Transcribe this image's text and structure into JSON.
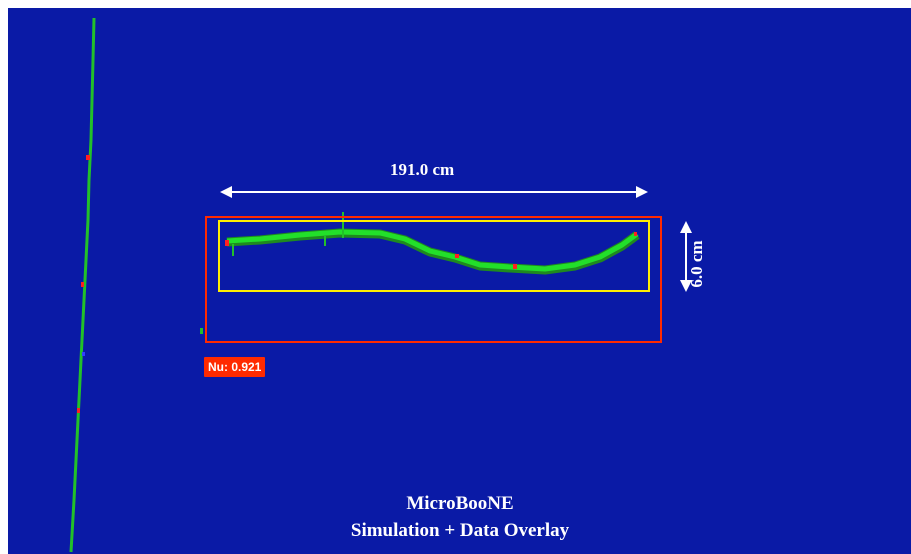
{
  "measurements": {
    "width_label": "191.0 cm",
    "height_label": "6.0 cm"
  },
  "detection": {
    "label": "Nu: 0.921",
    "box_color": "#ff2a00",
    "inner_box_color": "#ffee00"
  },
  "caption": {
    "line1": "MicroBooNE",
    "line2": "Simulation + Data Overlay"
  },
  "colors": {
    "background": "#0a1aa6",
    "track": "#22e02a",
    "arrow": "#ffffff"
  }
}
